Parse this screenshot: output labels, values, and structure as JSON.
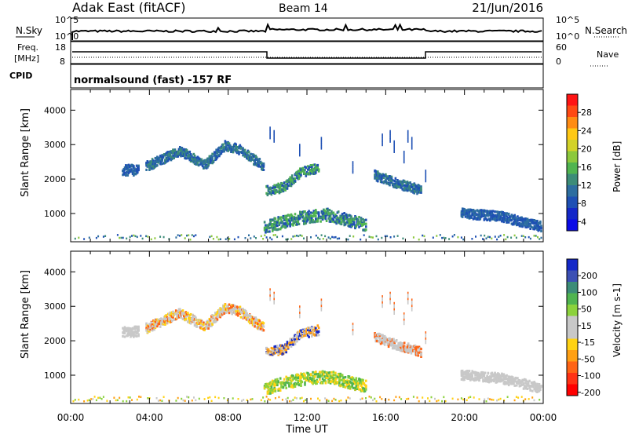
{
  "header": {
    "station": "Adak East (fitACF)",
    "beam": "Beam 14",
    "date": "21/Jun/2016"
  },
  "noise_panel": {
    "left_label": "N.Sky",
    "right_label": "N.Search",
    "top_tick": "10^5",
    "bottom_tick": "10^0"
  },
  "freq_panel": {
    "left_label_line1": "Freq.",
    "left_label_line2": "[MHz]",
    "left_ticks": [
      "18",
      "8"
    ],
    "right_label": "Nave",
    "right_ticks": [
      "60",
      "0"
    ],
    "cpid_label": "CPID",
    "program_text": "normalsound (fast) -157 RF"
  },
  "chart_data": [
    {
      "type": "heatmap",
      "title": "",
      "xlabel": "",
      "ylabel": "Slant Range [km]",
      "xlim": [
        0,
        24
      ],
      "ylim": [
        180,
        4600
      ],
      "y_ticks": [
        "1000",
        "2000",
        "3000",
        "4000"
      ],
      "colorbar": {
        "label": "Power [dB]",
        "ticks": [
          "28",
          "24",
          "20",
          "16",
          "12",
          "8",
          "4"
        ],
        "colors": [
          "#ff1414",
          "#ff4a14",
          "#ff8c14",
          "#ffc814",
          "#d2d228",
          "#8cc83c",
          "#50b450",
          "#3c8c78",
          "#2d6ea0",
          "#1e50b4",
          "#1428c8",
          "#0a0ae6"
        ]
      },
      "echo_regions": [
        {
          "name": "arc-early",
          "start": 2.6,
          "end": 3.4,
          "range": [
            2100,
            2400
          ],
          "colors": [
            "#1e50b4",
            "#2d6ea0"
          ]
        },
        {
          "name": "main-arc",
          "start": 3.8,
          "end": 9.8,
          "range_path": [
            [
              3.8,
              2350
            ],
            [
              5.5,
              2800
            ],
            [
              6.8,
              2400
            ],
            [
              7.8,
              2950
            ],
            [
              8.5,
              2850
            ],
            [
              9.8,
              2350
            ]
          ],
          "colors": [
            "#1e50b4",
            "#2d6ea0",
            "#3c8c78"
          ]
        },
        {
          "name": "mid-cluster",
          "start": 9.9,
          "end": 12.6,
          "range_path": [
            [
              9.9,
              1650
            ],
            [
              10.8,
              1750
            ],
            [
              11.7,
              2200
            ],
            [
              12.6,
              2300
            ]
          ],
          "colors": [
            "#1e50b4",
            "#50b450",
            "#3c8c78"
          ]
        },
        {
          "name": "late-arc",
          "start": 15.4,
          "end": 17.8,
          "range_path": [
            [
              15.4,
              2100
            ],
            [
              16.6,
              1850
            ],
            [
              17.8,
              1650
            ]
          ],
          "colors": [
            "#1e50b4",
            "#2d6ea0",
            "#3c8c78"
          ]
        },
        {
          "name": "ground-scatter",
          "start": 9.8,
          "end": 15.0,
          "range_path": [
            [
              9.8,
              600
            ],
            [
              11.5,
              850
            ],
            [
              13.0,
              950
            ],
            [
              15.0,
              650
            ]
          ],
          "colors": [
            "#3c8c78",
            "#50b450",
            "#1e50b4"
          ]
        },
        {
          "name": "evening",
          "start": 19.8,
          "end": 23.9,
          "range_path": [
            [
              19.8,
              1000
            ],
            [
              21.8,
              900
            ],
            [
              23.9,
              600
            ]
          ],
          "colors": [
            "#1e50b4",
            "#2d6ea0"
          ]
        }
      ]
    },
    {
      "type": "heatmap",
      "title": "",
      "xlabel": "Time UT",
      "ylabel": "Slant Range [km]",
      "xlim": [
        0,
        24
      ],
      "ylim": [
        180,
        4600
      ],
      "x_ticks": [
        "00:00",
        "04:00",
        "08:00",
        "12:00",
        "16:00",
        "20:00",
        "00:00"
      ],
      "y_ticks": [
        "1000",
        "2000",
        "3000",
        "4000"
      ],
      "colorbar": {
        "label": "Velocity [m s-1]",
        "ticks": [
          "200",
          "100",
          "50",
          "15",
          "-15",
          "-50",
          "-100",
          "-200"
        ],
        "colors": [
          "#1428c8",
          "#3c50b4",
          "#3c8c78",
          "#50b450",
          "#8cd23c",
          "#c8c8c8",
          "#c8c8c8",
          "#ffd214",
          "#ffa014",
          "#ff6414",
          "#ff3214",
          "#ff0000"
        ]
      },
      "echo_regions": [
        {
          "name": "arc-early",
          "start": 2.6,
          "end": 3.4,
          "range": [
            2100,
            2400
          ],
          "colors": [
            "#c8c8c8"
          ]
        },
        {
          "name": "main-arc",
          "start": 3.8,
          "end": 9.8,
          "range_path": [
            [
              3.8,
              2350
            ],
            [
              5.5,
              2800
            ],
            [
              6.8,
              2400
            ],
            [
              7.8,
              2950
            ],
            [
              8.5,
              2850
            ],
            [
              9.8,
              2350
            ]
          ],
          "colors": [
            "#c8c8c8",
            "#c8c8c8",
            "#ffd214",
            "#ff6414"
          ]
        },
        {
          "name": "mid-cluster",
          "start": 9.9,
          "end": 12.6,
          "range_path": [
            [
              9.9,
              1650
            ],
            [
              10.8,
              1750
            ],
            [
              11.7,
              2200
            ],
            [
              12.6,
              2300
            ]
          ],
          "colors": [
            "#c8c8c8",
            "#ffa014",
            "#1428c8"
          ]
        },
        {
          "name": "late-arc",
          "start": 15.4,
          "end": 17.8,
          "range_path": [
            [
              15.4,
              2100
            ],
            [
              16.6,
              1850
            ],
            [
              17.8,
              1650
            ]
          ],
          "colors": [
            "#c8c8c8",
            "#c8c8c8",
            "#ff6414"
          ]
        },
        {
          "name": "ground-scatter",
          "start": 9.8,
          "end": 15.0,
          "range_path": [
            [
              9.8,
              600
            ],
            [
              11.5,
              850
            ],
            [
              13.0,
              950
            ],
            [
              15.0,
              650
            ]
          ],
          "colors": [
            "#8cd23c",
            "#50b450",
            "#ffd214"
          ]
        },
        {
          "name": "evening",
          "start": 19.8,
          "end": 23.9,
          "range_path": [
            [
              19.8,
              1000
            ],
            [
              21.8,
              900
            ],
            [
              23.9,
              600
            ]
          ],
          "colors": [
            "#c8c8c8"
          ]
        }
      ]
    }
  ]
}
